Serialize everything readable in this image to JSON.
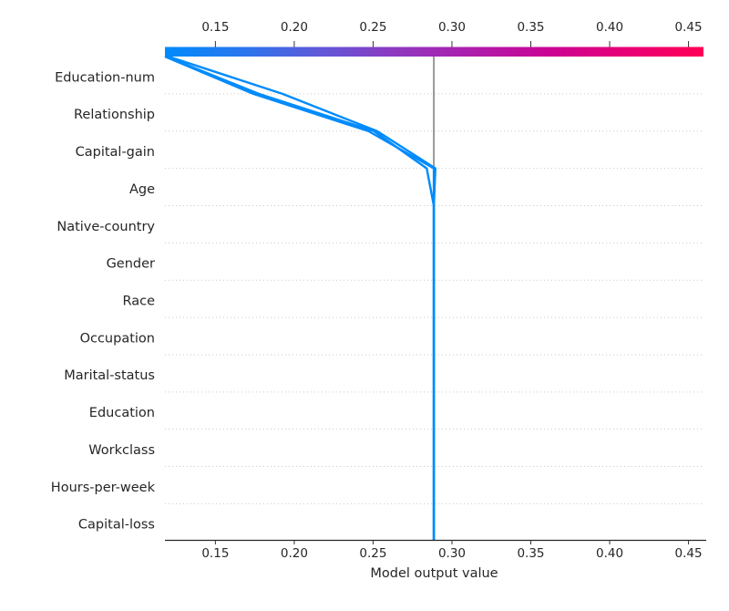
{
  "chart_data": {
    "type": "line",
    "title": "",
    "xlabel": "Model output value",
    "features_top_to_bottom": [
      "Education-num",
      "Relationship",
      "Capital-gain",
      "Age",
      "Native-country",
      "Gender",
      "Race",
      "Occupation",
      "Marital-status",
      "Education",
      "Workclass",
      "Hours-per-week",
      "Capital-loss"
    ],
    "xlim": [
      0.118,
      0.4595
    ],
    "xtick_labels": [
      "0.15",
      "0.20",
      "0.25",
      "0.30",
      "0.35",
      "0.40",
      "0.45"
    ],
    "xtick_values": [
      0.15,
      0.2,
      0.25,
      0.3,
      0.35,
      0.4,
      0.45
    ],
    "colorbar_tick_labels": [
      "0.15",
      "0.20",
      "0.25",
      "0.30",
      "0.35",
      "0.40",
      "0.45"
    ],
    "base_value": 0.2885,
    "boundary_order": [
      "top-final-value",
      "below-education-num",
      "below-relationship",
      "below-capital-gain",
      "below-age",
      "bottom-base"
    ],
    "lines": [
      {
        "name": "observation-1",
        "model_output": 0.118,
        "values_at_boundaries": [
          0.118,
          0.174,
          0.247,
          0.2885,
          0.2885,
          0.2885
        ]
      },
      {
        "name": "observation-2",
        "model_output": 0.1188,
        "values_at_boundaries": [
          0.1188,
          0.1775,
          0.2505,
          0.284,
          0.2885,
          0.2885
        ]
      },
      {
        "name": "observation-3",
        "model_output": 0.1202,
        "values_at_boundaries": [
          0.1202,
          0.1925,
          0.2525,
          0.2895,
          0.2885,
          0.2885
        ]
      }
    ],
    "grid": "horizontal-dotted",
    "legend": null,
    "colors": {
      "line": "#008bfb",
      "base_line": "#909090",
      "gridline": "#c9c9c9",
      "axis": "#262626",
      "tick": "#333333",
      "text": "#262626",
      "colorbar_gradient": [
        "#008bfb",
        "#2a76ee",
        "#5f59d8",
        "#8f38c0",
        "#ae1cab",
        "#cb0494",
        "#e80076",
        "#ff0056"
      ]
    }
  }
}
